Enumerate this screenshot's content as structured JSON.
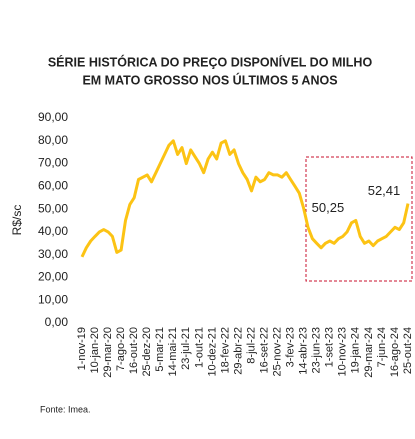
{
  "chart_data": {
    "type": "line",
    "title": "SÉRIE HISTÓRICA DO PREÇO DISPONÍVEL DO MILHO",
    "subtitle": "EM MATO GROSSO NOS ÚLTIMOS 5 ANOS",
    "y_label": "R$/sc",
    "source": "Fonte: Imea.",
    "x": [
      "1-nov-19",
      null,
      null,
      "10-jan-20",
      null,
      null,
      "29-mar-20",
      null,
      null,
      "7-ago-20",
      null,
      null,
      "16-out-20",
      null,
      null,
      "25-dez-20",
      null,
      null,
      "5-mar-21",
      null,
      null,
      "14-mai-21",
      null,
      null,
      "23-jul-21",
      null,
      null,
      "1-out-21",
      null,
      null,
      "10-dez-21",
      null,
      null,
      "18-fev-22",
      null,
      null,
      "29-abr-22",
      null,
      null,
      "8-jul-22",
      null,
      null,
      "16-set-22",
      null,
      null,
      "25-nov-22",
      null,
      null,
      "3-fev-23",
      null,
      null,
      "14-abr-23",
      null,
      null,
      "23-jun-23",
      null,
      null,
      "1-set-23",
      null,
      null,
      "10-nov-23",
      null,
      null,
      "19-jan-24",
      null,
      null,
      "29-mar-24",
      null,
      null,
      "7-jun-24",
      null,
      null,
      "16-ago-24",
      null,
      null,
      "25-out-24"
    ],
    "series": [
      {
        "name": "Preço disponível",
        "color": "#fcc314",
        "values": [
          29,
          33,
          36,
          38,
          40,
          41,
          40,
          38,
          31,
          32,
          45,
          52,
          55,
          63,
          64,
          65,
          62,
          66,
          70,
          74,
          78,
          80,
          74,
          77,
          70,
          76,
          73,
          70,
          66,
          72,
          75,
          72,
          79,
          80,
          74,
          76,
          70,
          66,
          63,
          58,
          64,
          62,
          63,
          66,
          65,
          65,
          64,
          66,
          63,
          60,
          57,
          50.25,
          42,
          37,
          35,
          33,
          35,
          36,
          35,
          37,
          38,
          40,
          44,
          45,
          38,
          35,
          36,
          34,
          36,
          37,
          38,
          40,
          42,
          41,
          44,
          52.41
        ],
        "value_labels": [
          null,
          null,
          null,
          null,
          null,
          null,
          null,
          null,
          null,
          null,
          null,
          null,
          null,
          null,
          null,
          null,
          null,
          null,
          null,
          null,
          null,
          null,
          null,
          null,
          null,
          null,
          null,
          null,
          null,
          null,
          null,
          null,
          null,
          null,
          null,
          null,
          null,
          null,
          null,
          null,
          null,
          null,
          null,
          null,
          null,
          null,
          null,
          null,
          null,
          null,
          null,
          "50,25",
          null,
          null,
          null,
          null,
          null,
          null,
          null,
          null,
          null,
          null,
          null,
          null,
          null,
          null,
          null,
          null,
          null,
          null,
          null,
          null,
          null,
          null,
          null,
          "52,41"
        ]
      }
    ],
    "ylim": [
      0,
      90
    ],
    "yticks": [
      {
        "value": 0,
        "label": "0,00"
      },
      {
        "value": 10,
        "label": "10,00"
      },
      {
        "value": 20,
        "label": "20,00"
      },
      {
        "value": 30,
        "label": "30,00"
      },
      {
        "value": 40,
        "label": "40,00"
      },
      {
        "value": 50,
        "label": "50,00"
      },
      {
        "value": 60,
        "label": "60,00"
      },
      {
        "value": 70,
        "label": "70,00"
      },
      {
        "value": 80,
        "label": "80,00"
      },
      {
        "value": 90,
        "label": "90,00"
      }
    ],
    "grid": false
  }
}
